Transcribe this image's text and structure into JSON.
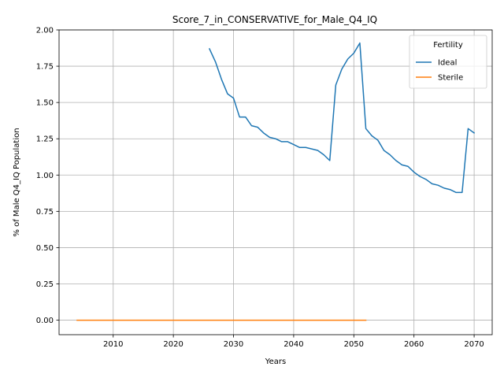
{
  "chart_data": {
    "type": "line",
    "title": "Score_7_in_CONSERVATIVE_for_Male_Q4_IQ",
    "xlabel": "Years",
    "ylabel": "% of Male Q4_IQ Population",
    "xlim": [
      2001,
      2073
    ],
    "ylim": [
      -0.1,
      2.0
    ],
    "xticks": [
      2010,
      2020,
      2030,
      2040,
      2050,
      2060,
      2070
    ],
    "yticks": [
      0.0,
      0.25,
      0.5,
      0.75,
      1.0,
      1.25,
      1.5,
      1.75,
      2.0
    ],
    "ytick_labels": [
      "0.00",
      "0.25",
      "0.50",
      "0.75",
      "1.00",
      "1.25",
      "1.50",
      "1.75",
      "2.00"
    ],
    "grid": true,
    "legend": {
      "title": "Fertility",
      "placement": "top-right"
    },
    "series": [
      {
        "name": "Ideal",
        "color": "#1f77b4",
        "x": [
          2026,
          2027,
          2028,
          2029,
          2030,
          2031,
          2032,
          2033,
          2034,
          2035,
          2036,
          2037,
          2038,
          2039,
          2040,
          2041,
          2042,
          2043,
          2044,
          2045,
          2046,
          2047,
          2048,
          2049,
          2050,
          2051,
          2052,
          2053,
          2054,
          2055,
          2056,
          2057,
          2058,
          2059,
          2060,
          2061,
          2062,
          2063,
          2064,
          2065,
          2066,
          2067,
          2068,
          2069,
          2070
        ],
        "y": [
          1.87,
          1.78,
          1.66,
          1.56,
          1.53,
          1.4,
          1.4,
          1.34,
          1.33,
          1.29,
          1.26,
          1.25,
          1.23,
          1.23,
          1.21,
          1.19,
          1.19,
          1.18,
          1.17,
          1.14,
          1.1,
          1.62,
          1.73,
          1.8,
          1.84,
          1.91,
          1.32,
          1.27,
          1.24,
          1.17,
          1.14,
          1.1,
          1.07,
          1.06,
          1.02,
          0.99,
          0.97,
          0.94,
          0.93,
          0.91,
          0.9,
          0.88,
          0.88,
          1.32,
          1.29
        ]
      },
      {
        "name": "Sterile",
        "color": "#ff7f0e",
        "x": [
          2004,
          2010,
          2020,
          2030,
          2040,
          2050,
          2052
        ],
        "y": [
          0,
          0,
          0,
          0,
          0,
          0,
          0
        ]
      }
    ]
  }
}
